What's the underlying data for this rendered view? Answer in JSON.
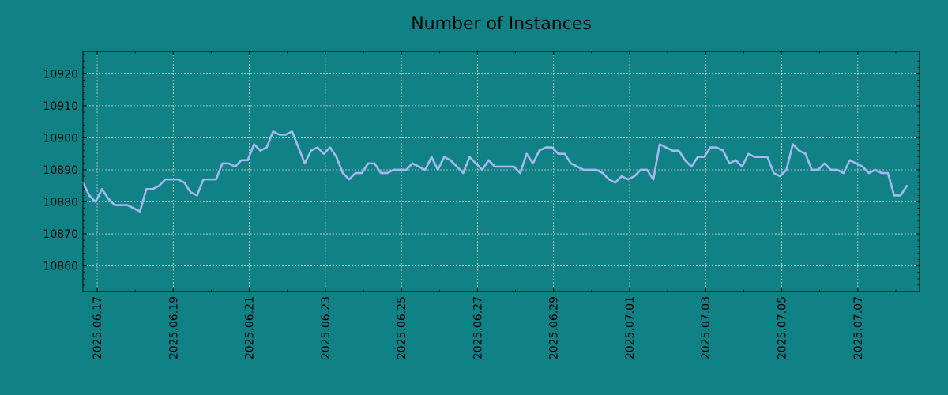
{
  "chart_data": {
    "type": "line",
    "title": "Number of Instances",
    "xlabel": "",
    "ylabel": "",
    "x_start": "2025-06-16T15:00:00",
    "x_step_hours": 4,
    "xlim": [
      "2025-06-16T15:00:00",
      "2025-07-08T15:00:00"
    ],
    "ylim": [
      10852,
      10927
    ],
    "y_ticks": [
      10860,
      10870,
      10880,
      10890,
      10900,
      10910,
      10920
    ],
    "x_tick_labels": [
      "2025.06.17",
      "2025.06.19",
      "2025.06.21",
      "2025.06.23",
      "2025.06.25",
      "2025.06.27",
      "2025.06.29",
      "2025.07.01",
      "2025.07.03",
      "2025.07.05",
      "2025.07.07"
    ],
    "grid": true,
    "colors": {
      "background": "#108286",
      "line": "#a6b8f2",
      "grid": "#d0d0d0"
    },
    "series": [
      {
        "values": [
          10886,
          10882,
          10880,
          10884,
          10881,
          10879,
          10879,
          10879,
          10878,
          10877,
          10884,
          10884,
          10885,
          10887,
          10887,
          10887,
          10886,
          10883,
          10882,
          10887,
          10887,
          10887,
          10892,
          10892,
          10891,
          10893,
          10893,
          10898,
          10896,
          10897,
          10902,
          10901,
          10901,
          10902,
          10897,
          10892,
          10896,
          10897,
          10895,
          10897,
          10894,
          10889,
          10887,
          10889,
          10889,
          10892,
          10892,
          10889,
          10889,
          10890,
          10890,
          10890,
          10892,
          10891,
          10890,
          10894,
          10890,
          10894,
          10893,
          10891,
          10889,
          10894,
          10892,
          10890,
          10893,
          10891,
          10891,
          10891,
          10891,
          10889,
          10895,
          10892,
          10896,
          10897,
          10897,
          10895,
          10895,
          10892,
          10891,
          10890,
          10890,
          10890,
          10889,
          10887,
          10886,
          10888,
          10887,
          10888,
          10890,
          10890,
          10887,
          10898,
          10897,
          10896,
          10896,
          10893,
          10891,
          10894,
          10894,
          10897,
          10897,
          10896,
          10892,
          10893,
          10891,
          10895,
          10894,
          10894,
          10894,
          10889,
          10888,
          10890,
          10898,
          10896,
          10895,
          10890,
          10890,
          10892,
          10890,
          10890,
          10889,
          10893,
          10892,
          10891,
          10889,
          10890,
          10889,
          10889,
          10882,
          10882,
          10885
        ]
      }
    ]
  }
}
